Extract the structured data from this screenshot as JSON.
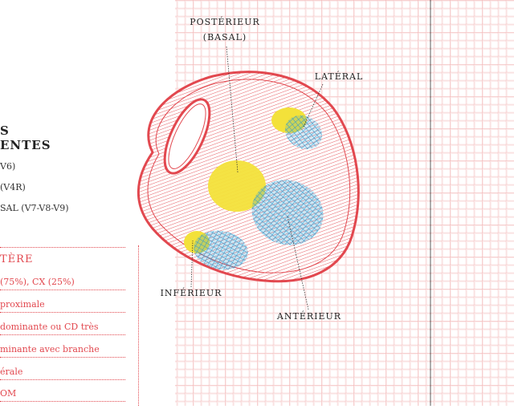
{
  "left_panel": {
    "heading_line1": "S",
    "heading_line2": "ENTES",
    "leads": [
      "V6)",
      "(V4R)",
      "SAL (V7-V8-V9)"
    ]
  },
  "artery_panel": {
    "title": "TÈRE",
    "rows": [
      "(75%), CX (25%)",
      "proximale",
      "dominante ou CD très",
      "minante avec branche",
      "érale",
      "OM"
    ]
  },
  "diagram": {
    "labels": {
      "posterior_line1": "POSTÉRIEUR",
      "posterior_line2": "(BASAL)",
      "lateral": "LATÉRAL",
      "inferior": "INFÉRIEUR",
      "anterior": "ANTÉRIEUR"
    },
    "colors": {
      "grid": "#f4b9b9",
      "heart": "#e2484f",
      "yellow": "#f3e13a",
      "blue": "#2f9bd0"
    }
  }
}
